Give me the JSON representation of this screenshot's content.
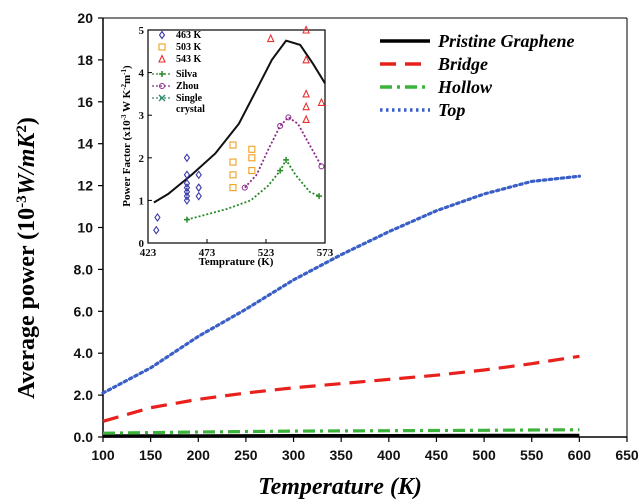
{
  "chart_data": {
    "main": {
      "type": "line",
      "xlabel": "Temperature (K)",
      "ylabel_main": "Average power (10",
      "ylabel_exp1": "-3",
      "ylabel_unit": "W/mK",
      "ylabel_exp2": "2",
      "ylabel_close": ")",
      "xlim": [
        100,
        650
      ],
      "ylim": [
        0,
        20
      ],
      "xticks": [
        "100",
        "150",
        "200",
        "250",
        "300",
        "350",
        "400",
        "450",
        "500",
        "550",
        "600",
        "650"
      ],
      "yticks": [
        "0.0",
        "2.0",
        "4.0",
        "6.0",
        "8.0",
        "10",
        "12",
        "14",
        "16",
        "18",
        "20"
      ],
      "legend_position": "top-right",
      "series": [
        {
          "name": "Pristine Graphene",
          "color": "#000000",
          "style": "solid",
          "x": [
            100,
            200,
            300,
            400,
            500,
            600
          ],
          "y": [
            0.05,
            0.05,
            0.06,
            0.06,
            0.07,
            0.07
          ]
        },
        {
          "name": "Bridge",
          "color": "#e8211d",
          "style": "dash",
          "x": [
            100,
            150,
            200,
            250,
            300,
            350,
            400,
            450,
            500,
            550,
            600
          ],
          "y": [
            0.75,
            1.4,
            1.8,
            2.1,
            2.35,
            2.55,
            2.75,
            2.95,
            3.2,
            3.5,
            3.85
          ]
        },
        {
          "name": "Hollow",
          "color": "#3cb43c",
          "style": "dashdot",
          "x": [
            100,
            200,
            300,
            400,
            500,
            600
          ],
          "y": [
            0.18,
            0.24,
            0.28,
            0.3,
            0.32,
            0.35
          ]
        },
        {
          "name": "Top",
          "color": "#3a5fc6",
          "style": "dot",
          "x": [
            100,
            150,
            200,
            250,
            300,
            350,
            400,
            450,
            500,
            550,
            600
          ],
          "y": [
            2.1,
            3.3,
            4.8,
            6.1,
            7.5,
            8.7,
            9.8,
            10.8,
            11.6,
            12.2,
            12.45
          ]
        }
      ]
    },
    "inset": {
      "type": "scatter",
      "xlabel": "Temprature (K)",
      "ylabel_pre": "Power Factor (x10",
      "ylabel_e1": "-3",
      "ylabel_mid": " W K",
      "ylabel_e2": "-2",
      "ylabel_m": "m",
      "ylabel_e3": "-1",
      "ylabel_post": ")",
      "xlim": [
        423,
        573
      ],
      "ylim": [
        0,
        5
      ],
      "xticks": [
        "423",
        "473",
        "523",
        "573"
      ],
      "yticks": [
        "0",
        "1",
        "2",
        "3",
        "4",
        "5"
      ],
      "scatter_series": [
        {
          "name": "463 K",
          "color": "#3a3aa8",
          "marker": "diamond",
          "points": [
            [
              430,
              0.3
            ],
            [
              431,
              0.6
            ],
            [
              456,
              1.0
            ],
            [
              456,
              1.1
            ],
            [
              456,
              1.2
            ],
            [
              456,
              1.3
            ],
            [
              456,
              1.4
            ],
            [
              456,
              1.6
            ],
            [
              456,
              2.0
            ],
            [
              466,
              1.1
            ],
            [
              466,
              1.3
            ],
            [
              466,
              1.6
            ]
          ]
        },
        {
          "name": "503 K",
          "color": "#f0a020",
          "marker": "square",
          "points": [
            [
              495,
              1.3
            ],
            [
              495,
              1.6
            ],
            [
              495,
              1.9
            ],
            [
              495,
              2.3
            ],
            [
              511,
              1.7
            ],
            [
              511,
              2.0
            ],
            [
              511,
              2.2
            ]
          ]
        },
        {
          "name": "543 K",
          "color": "#e83030",
          "marker": "triangle",
          "points": [
            [
              527,
              4.8
            ],
            [
              557,
              5.0
            ],
            [
              557,
              4.3
            ],
            [
              557,
              3.5
            ],
            [
              557,
              3.2
            ],
            [
              557,
              2.9
            ],
            [
              570,
              3.3
            ]
          ]
        }
      ],
      "line_series": [
        {
          "name": "",
          "color": "#111111",
          "style": "solid",
          "x": [
            428,
            440,
            460,
            480,
            500,
            515,
            528,
            540,
            552,
            563,
            573
          ],
          "y": [
            0.95,
            1.15,
            1.6,
            2.1,
            2.8,
            3.6,
            4.3,
            4.75,
            4.65,
            4.2,
            3.75
          ]
        },
        {
          "name": "Silva",
          "color": "#2a8a2a",
          "style": "dotted",
          "x": [
            456,
            470,
            490,
            510,
            525,
            535,
            540,
            548,
            560,
            568
          ],
          "y": [
            0.55,
            0.65,
            0.8,
            1.0,
            1.35,
            1.7,
            1.95,
            1.6,
            1.2,
            1.1
          ]
        },
        {
          "name": "Zhou",
          "color": "#8a2a8a",
          "style": "dotted",
          "x": [
            505,
            515,
            525,
            535,
            542,
            550,
            560,
            570
          ],
          "y": [
            1.3,
            1.6,
            2.2,
            2.75,
            2.95,
            2.8,
            2.3,
            1.8
          ]
        }
      ],
      "legend_entries": [
        {
          "label": "463 K",
          "color": "#3a3aa8",
          "marker": "diamond"
        },
        {
          "label": "503 K",
          "color": "#f0a020",
          "marker": "square"
        },
        {
          "label": "543 K",
          "color": "#e83030",
          "marker": "triangle"
        },
        {
          "label": "Silva",
          "color": "#2a8a2a",
          "marker": "plus-dotted"
        },
        {
          "label": "Zhou",
          "color": "#8a2a8a",
          "marker": "circle-dotted"
        },
        {
          "label": "Single",
          "color": "#2a8a6a",
          "marker": "x-dotted"
        },
        {
          "label": "crystal",
          "color": "#2a8a6a",
          "marker": "none"
        }
      ]
    }
  }
}
